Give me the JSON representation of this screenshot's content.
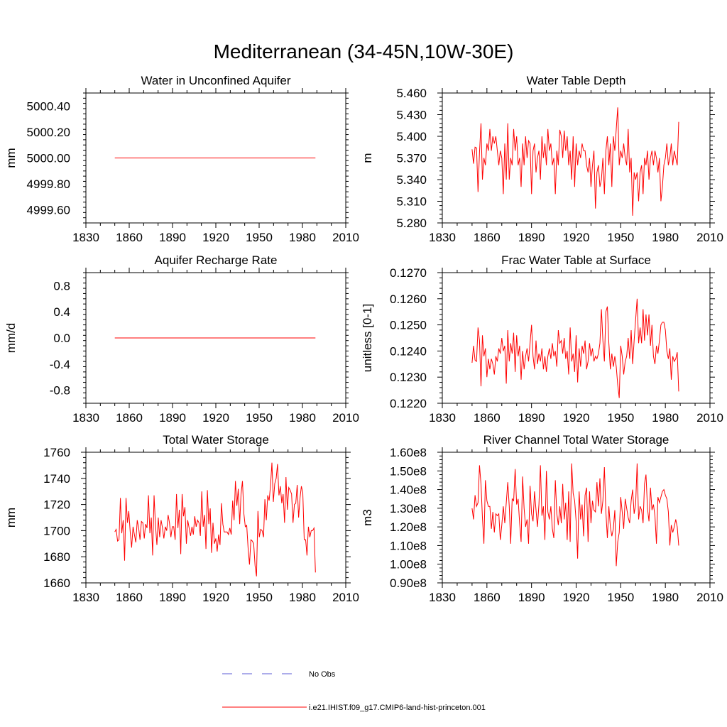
{
  "figure_title": "Mediterranean (34-45N,10W-30E)",
  "legend": {
    "entries": [
      {
        "label": "No Obs",
        "color": "#5b5bd6",
        "style": "dashed"
      },
      {
        "label": "i.e21.IHIST.f09_g17.CMIP6-land-hist-princeton.001",
        "color": "#ff0000",
        "style": "solid"
      }
    ]
  },
  "chart_data": [
    {
      "type": "line",
      "title": "Water in Unconfined Aquifer",
      "ylabel": "mm",
      "xlim": [
        1830,
        2010
      ],
      "xticks": [
        1830,
        1860,
        1890,
        1920,
        1950,
        1980,
        2010
      ],
      "xtick_labels": [
        "1830",
        "1860",
        "1890",
        "1920",
        "1950",
        "1980",
        "2010"
      ],
      "ylim": [
        4999.5,
        5000.5
      ],
      "yticks": [
        4999.6,
        4999.8,
        5000.0,
        5000.2,
        5000.4
      ],
      "ytick_labels": [
        "4999.60",
        "4999.80",
        "5000.00",
        "5000.20",
        "5000.40"
      ],
      "series": [
        {
          "color": "#ff0000",
          "x_start": 1850,
          "x_end": 1989,
          "values": [
            5000.0,
            5000.0
          ]
        }
      ]
    },
    {
      "type": "line",
      "title": "Water Table Depth",
      "ylabel": "m",
      "xlim": [
        1830,
        2010
      ],
      "xticks": [
        1830,
        1860,
        1890,
        1920,
        1950,
        1980,
        2010
      ],
      "xtick_labels": [
        "1830",
        "1860",
        "1890",
        "1920",
        "1950",
        "1980",
        "2010"
      ],
      "ylim": [
        5.28,
        5.46
      ],
      "yticks": [
        5.28,
        5.31,
        5.34,
        5.37,
        5.4,
        5.43,
        5.46
      ],
      "ytick_labels": [
        "5.280",
        "5.310",
        "5.340",
        "5.370",
        "5.400",
        "5.430",
        "5.460"
      ],
      "series": [
        {
          "color": "#ff0000",
          "x_start": 1850,
          "x_end": 1989,
          "values": [
            5.382,
            5.362,
            5.385,
            5.384,
            5.323,
            5.378,
            5.418,
            5.34,
            5.37,
            5.36,
            5.39,
            5.38,
            5.41,
            5.38,
            5.4,
            5.39,
            5.4,
            5.38,
            5.36,
            5.38,
            5.37,
            5.32,
            5.39,
            5.34,
            5.418,
            5.34,
            5.37,
            5.36,
            5.41,
            5.38,
            5.4,
            5.36,
            5.37,
            5.33,
            5.39,
            5.36,
            5.4,
            5.37,
            5.394,
            5.39,
            5.32,
            5.38,
            5.39,
            5.35,
            5.37,
            5.38,
            5.34,
            5.4,
            5.37,
            5.39,
            5.36,
            5.41,
            5.38,
            5.39,
            5.36,
            5.37,
            5.32,
            5.38,
            5.36,
            5.409,
            5.4,
            5.37,
            5.408,
            5.38,
            5.4,
            5.36,
            5.38,
            5.34,
            5.4,
            5.33,
            5.39,
            5.36,
            5.38,
            5.37,
            5.39,
            5.38,
            5.38,
            5.36,
            5.35,
            5.37,
            5.33,
            5.36,
            5.38,
            5.3,
            5.35,
            5.36,
            5.33,
            5.34,
            5.37,
            5.32,
            5.38,
            5.4,
            5.36,
            5.39,
            5.33,
            5.4,
            5.38,
            5.41,
            5.44,
            5.36,
            5.38,
            5.37,
            5.39,
            5.37,
            5.36,
            5.41,
            5.35,
            5.37,
            5.29,
            5.35,
            5.34,
            5.35,
            5.31,
            5.35,
            5.36,
            5.32,
            5.37,
            5.36,
            5.38,
            5.34,
            5.37,
            5.38,
            5.36,
            5.38,
            5.37,
            5.35,
            5.37,
            5.31,
            5.33,
            5.36,
            5.37,
            5.39,
            5.36,
            5.37,
            5.39,
            5.36,
            5.38,
            5.37,
            5.36,
            5.42
          ]
        }
      ]
    },
    {
      "type": "line",
      "title": "Aquifer Recharge Rate",
      "ylabel": "mm/d",
      "xlim": [
        1830,
        2010
      ],
      "xticks": [
        1830,
        1860,
        1890,
        1920,
        1950,
        1980,
        2010
      ],
      "xtick_labels": [
        "1830",
        "1860",
        "1890",
        "1920",
        "1950",
        "1980",
        "2010"
      ],
      "ylim": [
        -1.0,
        1.0
      ],
      "yticks": [
        -0.8,
        -0.4,
        0.0,
        0.4,
        0.8
      ],
      "ytick_labels": [
        "-0.8",
        "-0.4",
        "0.0",
        "0.4",
        "0.8"
      ],
      "series": [
        {
          "color": "#ff0000",
          "x_start": 1850,
          "x_end": 1989,
          "values": [
            0.0,
            0.0
          ]
        }
      ]
    },
    {
      "type": "line",
      "title": "Frac Water Table at Surface",
      "ylabel": "unitless [0-1]",
      "xlim": [
        1830,
        2010
      ],
      "xticks": [
        1830,
        1860,
        1890,
        1920,
        1950,
        1980,
        2010
      ],
      "xtick_labels": [
        "1830",
        "1860",
        "1890",
        "1920",
        "1950",
        "1980",
        "2010"
      ],
      "ylim": [
        0.122,
        0.127
      ],
      "yticks": [
        0.122,
        0.123,
        0.124,
        0.125,
        0.126,
        0.127
      ],
      "ytick_labels": [
        "0.1220",
        "0.1230",
        "0.1240",
        "0.1250",
        "0.1260",
        "0.1270"
      ],
      "series": [
        {
          "color": "#ff0000",
          "x_start": 1850,
          "x_end": 1989,
          "values": [
            0.12355,
            0.1242,
            0.12365,
            0.1236,
            0.1249,
            0.1244,
            0.12265,
            0.1246,
            0.1238,
            0.1241,
            0.123,
            0.1237,
            0.1233,
            0.1237,
            0.1235,
            0.1231,
            0.1238,
            0.1236,
            0.1241,
            0.1239,
            0.1245,
            0.124,
            0.1242,
            0.12275,
            0.1248,
            0.1236,
            0.1243,
            0.1239,
            0.1247,
            0.1232,
            0.1246,
            0.1238,
            0.1242,
            0.1229,
            0.124,
            0.1233,
            0.1238,
            0.1241,
            0.1236,
            0.1243,
            0.125,
            0.1238,
            0.1233,
            0.1244,
            0.1235,
            0.1239,
            0.1236,
            0.1241,
            0.1233,
            0.1238,
            0.1232,
            0.1238,
            0.1241,
            0.1237,
            0.1243,
            0.1238,
            0.124,
            0.1234,
            0.1248,
            0.1243,
            0.1244,
            0.1239,
            0.1245,
            0.1237,
            0.124,
            0.1231,
            0.1249,
            0.1236,
            0.1239,
            0.1232,
            0.1246,
            0.1228,
            0.1241,
            0.1234,
            0.1242,
            0.1239,
            0.1244,
            0.1233,
            0.1236,
            0.1243,
            0.1238,
            0.1241,
            0.1236,
            0.1238,
            0.1237,
            0.1239,
            0.1243,
            0.1256,
            0.1244,
            0.1236,
            0.1255,
            0.1257,
            0.1243,
            0.1233,
            0.1239,
            0.1234,
            0.1238,
            0.1234,
            0.1227,
            0.1222,
            0.1242,
            0.1238,
            0.1231,
            0.1236,
            0.1238,
            0.1245,
            0.1237,
            0.1248,
            0.1235,
            0.1244,
            0.1252,
            0.126,
            0.1243,
            0.1249,
            0.1243,
            0.1256,
            0.1244,
            0.1254,
            0.1246,
            0.1254,
            0.1242,
            0.125,
            0.1238,
            0.1235,
            0.1242,
            0.1239,
            0.1244,
            0.125,
            0.1251,
            0.1251,
            0.1248,
            0.124,
            0.1237,
            0.1241,
            0.1229,
            0.1238,
            0.1236,
            0.1237,
            0.12395,
            0.12245
          ]
        }
      ]
    },
    {
      "type": "line",
      "title": "Total Water Storage",
      "ylabel": "mm",
      "xlim": [
        1830,
        2010
      ],
      "xticks": [
        1830,
        1860,
        1890,
        1920,
        1950,
        1980,
        2010
      ],
      "xtick_labels": [
        "1830",
        "1860",
        "1890",
        "1920",
        "1950",
        "1980",
        "2010"
      ],
      "ylim": [
        1660,
        1760
      ],
      "yticks": [
        1660,
        1680,
        1700,
        1720,
        1740,
        1760
      ],
      "ytick_labels": [
        "1660",
        "1680",
        "1700",
        "1720",
        "1740",
        "1760"
      ],
      "series": [
        {
          "color": "#ff0000",
          "x_start": 1850,
          "x_end": 1989,
          "values": [
            1699,
            1701,
            1692,
            1693,
            1725,
            1698,
            1708,
            1677,
            1725,
            1706,
            1715,
            1699,
            1687,
            1703,
            1697,
            1691,
            1708,
            1702,
            1693,
            1707,
            1706,
            1694,
            1705,
            1702,
            1727,
            1698,
            1710,
            1681,
            1727,
            1704,
            1689,
            1710,
            1695,
            1708,
            1702,
            1694,
            1703,
            1700,
            1712,
            1706,
            1695,
            1703,
            1703,
            1693,
            1728,
            1702,
            1716,
            1682,
            1728,
            1711,
            1718,
            1690,
            1708,
            1702,
            1696,
            1703,
            1697,
            1711,
            1703,
            1708,
            1706,
            1696,
            1730,
            1703,
            1712,
            1686,
            1731,
            1705,
            1717,
            1683,
            1706,
            1690,
            1694,
            1684,
            1697,
            1689,
            1721,
            1705,
            1699,
            1699,
            1699,
            1697,
            1702,
            1697,
            1723,
            1708,
            1738,
            1719,
            1732,
            1705,
            1728,
            1738,
            1713,
            1703,
            1704,
            1687,
            1674,
            1693,
            1692,
            1690,
            1673,
            1665,
            1715,
            1695,
            1701,
            1700,
            1695,
            1724,
            1708,
            1727,
            1723,
            1735,
            1752,
            1722,
            1736,
            1740,
            1751,
            1727,
            1734,
            1721,
            1728,
            1706,
            1741,
            1716,
            1733,
            1731,
            1728,
            1706,
            1720,
            1721,
            1735,
            1710,
            1725,
            1734,
            1729,
            1693,
            1693,
            1681,
            1703,
            1695,
            1700,
            1700,
            1702,
            1668
          ]
        }
      ]
    },
    {
      "type": "line",
      "title": "River Channel Total Water Storage",
      "ylabel": "m3",
      "xlim": [
        1830,
        2010
      ],
      "xticks": [
        1830,
        1860,
        1890,
        1920,
        1950,
        1980,
        2010
      ],
      "xtick_labels": [
        "1830",
        "1860",
        "1890",
        "1920",
        "1950",
        "1980",
        "2010"
      ],
      "ylim": [
        90000000,
        160000000
      ],
      "yticks": [
        90000000,
        100000000,
        110000000,
        120000000,
        130000000,
        140000000,
        150000000,
        160000000
      ],
      "ytick_labels": [
        "0.90e8",
        "1.00e8",
        "1.10e8",
        "1.20e8",
        "1.30e8",
        "1.40e8",
        "1.50e8",
        "1.60e8"
      ],
      "series": [
        {
          "color": "#ff0000",
          "x_start": 1850,
          "x_end": 1989,
          "values": [
            130000000,
            124000000,
            137000000,
            131000000,
            133000000,
            153000000,
            143000000,
            125000000,
            111000000,
            145000000,
            134000000,
            131000000,
            131000000,
            119000000,
            128000000,
            117000000,
            127000000,
            126000000,
            127000000,
            113000000,
            121000000,
            131000000,
            122000000,
            133000000,
            144000000,
            131000000,
            111000000,
            135000000,
            134000000,
            151000000,
            132000000,
            135000000,
            122000000,
            112000000,
            147000000,
            130000000,
            120000000,
            124000000,
            111000000,
            142000000,
            127000000,
            123000000,
            139000000,
            129000000,
            120000000,
            132000000,
            153000000,
            126000000,
            131000000,
            113000000,
            150000000,
            128000000,
            124000000,
            131000000,
            119000000,
            114000000,
            145000000,
            127000000,
            121000000,
            131000000,
            122000000,
            143000000,
            124000000,
            133000000,
            113000000,
            139000000,
            112000000,
            154000000,
            138000000,
            134000000,
            123000000,
            103000000,
            139000000,
            124000000,
            132000000,
            115000000,
            137000000,
            141000000,
            112000000,
            139000000,
            122000000,
            134000000,
            129000000,
            128000000,
            144000000,
            131000000,
            146000000,
            127000000,
            134000000,
            152000000,
            128000000,
            114000000,
            131000000,
            120000000,
            115000000,
            119000000,
            129000000,
            99000000,
            112000000,
            117000000,
            136000000,
            128000000,
            119000000,
            135000000,
            130000000,
            125000000,
            122000000,
            134000000,
            140000000,
            127000000,
            132000000,
            154000000,
            124000000,
            131000000,
            129000000,
            122000000,
            143000000,
            148000000,
            130000000,
            123000000,
            141000000,
            129000000,
            132000000,
            126000000,
            111000000,
            136000000,
            133000000,
            136000000,
            139000000,
            140000000,
            137000000,
            135000000,
            128000000,
            110000000,
            121000000,
            117000000,
            120000000,
            124000000,
            120000000,
            110000000
          ]
        }
      ]
    }
  ]
}
